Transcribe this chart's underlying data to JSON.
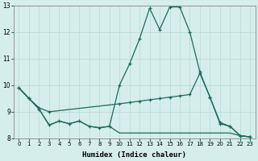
{
  "xlabel": "Humidex (Indice chaleur)",
  "bg_color": "#d6eeeb",
  "grid_color": "#b8d8d4",
  "line_color": "#1a6b5a",
  "xlim": [
    -0.5,
    23.5
  ],
  "ylim": [
    8,
    13
  ],
  "yticks": [
    8,
    9,
    10,
    11,
    12,
    13
  ],
  "xticks": [
    0,
    1,
    2,
    3,
    4,
    5,
    6,
    7,
    8,
    9,
    10,
    11,
    12,
    13,
    14,
    15,
    16,
    17,
    18,
    19,
    20,
    21,
    22,
    23
  ],
  "line1_x": [
    0,
    1,
    2,
    3,
    4,
    5,
    6,
    7,
    8,
    9,
    10,
    11,
    12,
    13,
    14,
    15,
    16,
    17,
    18,
    19,
    20,
    21,
    22,
    23
  ],
  "line1_y": [
    9.9,
    9.5,
    9.1,
    8.5,
    8.65,
    8.55,
    8.65,
    8.45,
    8.4,
    8.45,
    10.0,
    10.8,
    11.75,
    12.9,
    12.1,
    12.95,
    12.95,
    12.0,
    10.5,
    9.55,
    8.6,
    8.45,
    8.1,
    8.05
  ],
  "line2_x": [
    0,
    1,
    2,
    3,
    10,
    11,
    12,
    13,
    14,
    15,
    16,
    17,
    18,
    19,
    20,
    21,
    22,
    23
  ],
  "line2_y": [
    9.9,
    9.5,
    9.15,
    9.0,
    9.3,
    9.35,
    9.4,
    9.45,
    9.5,
    9.55,
    9.6,
    9.65,
    10.45,
    9.55,
    8.55,
    8.45,
    8.1,
    8.05
  ],
  "line3_x": [
    0,
    1,
    2,
    3,
    4,
    5,
    6,
    7,
    8,
    9,
    10,
    11,
    12,
    13,
    14,
    15,
    16,
    17,
    18,
    19,
    20,
    21,
    22,
    23
  ],
  "line3_y": [
    9.9,
    9.5,
    9.1,
    8.5,
    8.65,
    8.55,
    8.65,
    8.45,
    8.4,
    8.45,
    8.2,
    8.2,
    8.2,
    8.2,
    8.2,
    8.2,
    8.2,
    8.2,
    8.2,
    8.2,
    8.2,
    8.2,
    8.1,
    8.05
  ]
}
